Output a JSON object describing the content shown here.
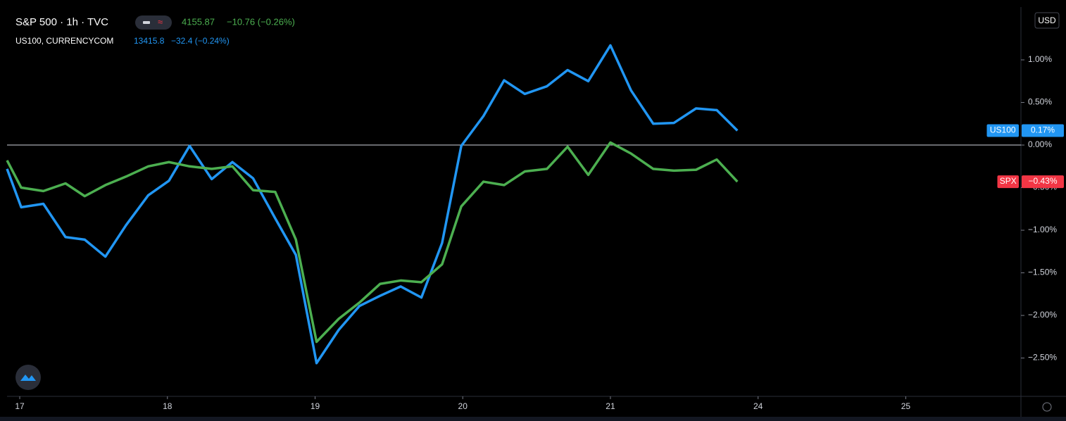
{
  "chart_data": {
    "type": "line",
    "header": {
      "symbol": "S&P 500 · 1h · TVC",
      "price": "4155.87",
      "change": "−10.76 (−0.26%)",
      "compare_symbol": "US100, CURRENCYCOM",
      "compare_price": "13415.8",
      "compare_change": "−32.4 (−0.24%)"
    },
    "currency_button": "USD",
    "x": [
      -0.086,
      0.01,
      0.16,
      0.31,
      0.44,
      0.58,
      0.72,
      0.87,
      1.01,
      1.15,
      1.3,
      1.44,
      1.58,
      1.73,
      1.87,
      2.01,
      2.16,
      2.3,
      2.44,
      2.58,
      2.72,
      2.86,
      2.99,
      3.14,
      3.28,
      3.42,
      3.57,
      3.71,
      3.85,
      4.0,
      4.14,
      4.29,
      4.43,
      4.58,
      4.72,
      4.86
    ],
    "xlim": [
      -0.086,
      6.78
    ],
    "xticks": [
      {
        "value": 0,
        "label": "17"
      },
      {
        "value": 1,
        "label": "18"
      },
      {
        "value": 2,
        "label": "19"
      },
      {
        "value": 3,
        "label": "20"
      },
      {
        "value": 4,
        "label": "21"
      },
      {
        "value": 5,
        "label": "24"
      },
      {
        "value": 6,
        "label": "25"
      }
    ],
    "ylim": [
      -2.95,
      1.62
    ],
    "yticks": [
      {
        "value": 1,
        "label": "1.00%"
      },
      {
        "value": 0.5,
        "label": "0.50%"
      },
      {
        "value": 0,
        "label": "0.00%"
      },
      {
        "value": -0.5,
        "label": "−0.50%"
      },
      {
        "value": -1,
        "label": "−1.00%"
      },
      {
        "value": -1.5,
        "label": "−1.50%"
      },
      {
        "value": -2,
        "label": "−2.00%"
      },
      {
        "value": -2.5,
        "label": "−2.50%"
      }
    ],
    "baseline": 0,
    "series": [
      {
        "name": "US100, CURRENCYCOM",
        "tag": "US100",
        "color": "#2196f3",
        "values": [
          -0.28,
          -0.73,
          -0.69,
          -1.08,
          -1.11,
          -1.31,
          -0.94,
          -0.59,
          -0.42,
          -0.01,
          -0.4,
          -0.2,
          -0.39,
          -0.86,
          -1.29,
          -2.56,
          -2.17,
          -1.89,
          -1.77,
          -1.66,
          -1.79,
          -1.15,
          -0.01,
          0.34,
          0.76,
          0.6,
          0.69,
          0.88,
          0.75,
          1.17,
          0.64,
          0.25,
          0.26,
          0.43,
          0.41,
          0.17
        ],
        "value_labels": [
          null,
          null,
          null,
          null,
          null,
          null,
          null,
          null,
          null,
          null,
          null,
          null,
          null,
          null,
          null,
          null,
          null,
          null,
          null,
          null,
          null,
          null,
          null,
          null,
          null,
          null,
          null,
          null,
          null,
          null,
          null,
          null,
          null,
          null,
          null,
          "0.17%"
        ]
      },
      {
        "name": "S&P 500 · 1h · TVC",
        "tag": "SPX",
        "color": "#4caf50",
        "tag_color": "#f23645",
        "values": [
          -0.18,
          -0.5,
          -0.54,
          -0.45,
          -0.6,
          -0.47,
          -0.37,
          -0.25,
          -0.2,
          -0.25,
          -0.28,
          -0.25,
          -0.53,
          -0.55,
          -1.11,
          -2.31,
          -2.04,
          -1.85,
          -1.63,
          -1.59,
          -1.61,
          -1.4,
          -0.72,
          -0.43,
          -0.47,
          -0.31,
          -0.28,
          -0.02,
          -0.35,
          0.03,
          -0.1,
          -0.28,
          -0.3,
          -0.29,
          -0.17,
          -0.43
        ],
        "value_labels": [
          null,
          null,
          null,
          null,
          null,
          null,
          null,
          null,
          null,
          null,
          null,
          null,
          null,
          null,
          null,
          null,
          null,
          null,
          null,
          null,
          null,
          null,
          null,
          null,
          null,
          null,
          null,
          null,
          null,
          null,
          null,
          null,
          null,
          null,
          null,
          "−0.43%"
        ]
      }
    ]
  }
}
